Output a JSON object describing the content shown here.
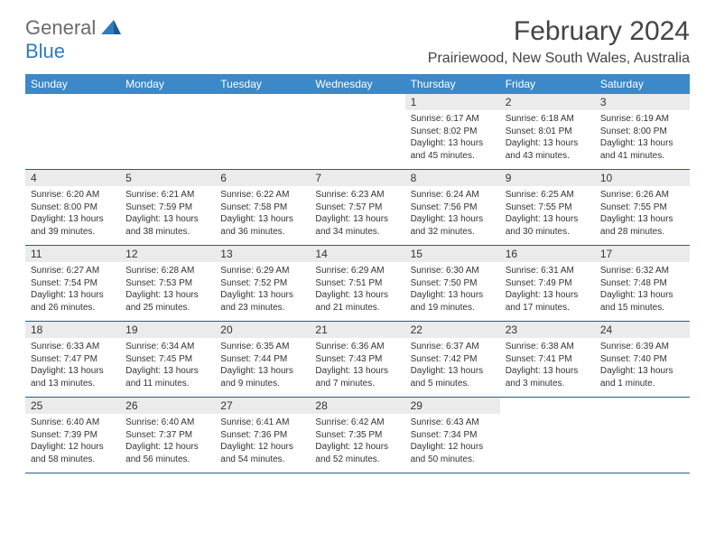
{
  "brand": {
    "part1": "General",
    "part2": "Blue"
  },
  "title": "February 2024",
  "location": "Prairiewood, New South Wales, Australia",
  "colors": {
    "header_bg": "#3b89c9",
    "header_text": "#ffffff",
    "daynum_bg": "#ebebeb",
    "border": "#2b5b85",
    "brand_grey": "#6b6b6b",
    "brand_blue": "#2f7bbf"
  },
  "weekdays": [
    "Sunday",
    "Monday",
    "Tuesday",
    "Wednesday",
    "Thursday",
    "Friday",
    "Saturday"
  ],
  "weeks": [
    [
      null,
      null,
      null,
      null,
      {
        "n": "1",
        "sr": "6:17 AM",
        "ss": "8:02 PM",
        "dl": "13 hours and 45 minutes."
      },
      {
        "n": "2",
        "sr": "6:18 AM",
        "ss": "8:01 PM",
        "dl": "13 hours and 43 minutes."
      },
      {
        "n": "3",
        "sr": "6:19 AM",
        "ss": "8:00 PM",
        "dl": "13 hours and 41 minutes."
      }
    ],
    [
      {
        "n": "4",
        "sr": "6:20 AM",
        "ss": "8:00 PM",
        "dl": "13 hours and 39 minutes."
      },
      {
        "n": "5",
        "sr": "6:21 AM",
        "ss": "7:59 PM",
        "dl": "13 hours and 38 minutes."
      },
      {
        "n": "6",
        "sr": "6:22 AM",
        "ss": "7:58 PM",
        "dl": "13 hours and 36 minutes."
      },
      {
        "n": "7",
        "sr": "6:23 AM",
        "ss": "7:57 PM",
        "dl": "13 hours and 34 minutes."
      },
      {
        "n": "8",
        "sr": "6:24 AM",
        "ss": "7:56 PM",
        "dl": "13 hours and 32 minutes."
      },
      {
        "n": "9",
        "sr": "6:25 AM",
        "ss": "7:55 PM",
        "dl": "13 hours and 30 minutes."
      },
      {
        "n": "10",
        "sr": "6:26 AM",
        "ss": "7:55 PM",
        "dl": "13 hours and 28 minutes."
      }
    ],
    [
      {
        "n": "11",
        "sr": "6:27 AM",
        "ss": "7:54 PM",
        "dl": "13 hours and 26 minutes."
      },
      {
        "n": "12",
        "sr": "6:28 AM",
        "ss": "7:53 PM",
        "dl": "13 hours and 25 minutes."
      },
      {
        "n": "13",
        "sr": "6:29 AM",
        "ss": "7:52 PM",
        "dl": "13 hours and 23 minutes."
      },
      {
        "n": "14",
        "sr": "6:29 AM",
        "ss": "7:51 PM",
        "dl": "13 hours and 21 minutes."
      },
      {
        "n": "15",
        "sr": "6:30 AM",
        "ss": "7:50 PM",
        "dl": "13 hours and 19 minutes."
      },
      {
        "n": "16",
        "sr": "6:31 AM",
        "ss": "7:49 PM",
        "dl": "13 hours and 17 minutes."
      },
      {
        "n": "17",
        "sr": "6:32 AM",
        "ss": "7:48 PM",
        "dl": "13 hours and 15 minutes."
      }
    ],
    [
      {
        "n": "18",
        "sr": "6:33 AM",
        "ss": "7:47 PM",
        "dl": "13 hours and 13 minutes."
      },
      {
        "n": "19",
        "sr": "6:34 AM",
        "ss": "7:45 PM",
        "dl": "13 hours and 11 minutes."
      },
      {
        "n": "20",
        "sr": "6:35 AM",
        "ss": "7:44 PM",
        "dl": "13 hours and 9 minutes."
      },
      {
        "n": "21",
        "sr": "6:36 AM",
        "ss": "7:43 PM",
        "dl": "13 hours and 7 minutes."
      },
      {
        "n": "22",
        "sr": "6:37 AM",
        "ss": "7:42 PM",
        "dl": "13 hours and 5 minutes."
      },
      {
        "n": "23",
        "sr": "6:38 AM",
        "ss": "7:41 PM",
        "dl": "13 hours and 3 minutes."
      },
      {
        "n": "24",
        "sr": "6:39 AM",
        "ss": "7:40 PM",
        "dl": "13 hours and 1 minute."
      }
    ],
    [
      {
        "n": "25",
        "sr": "6:40 AM",
        "ss": "7:39 PM",
        "dl": "12 hours and 58 minutes."
      },
      {
        "n": "26",
        "sr": "6:40 AM",
        "ss": "7:37 PM",
        "dl": "12 hours and 56 minutes."
      },
      {
        "n": "27",
        "sr": "6:41 AM",
        "ss": "7:36 PM",
        "dl": "12 hours and 54 minutes."
      },
      {
        "n": "28",
        "sr": "6:42 AM",
        "ss": "7:35 PM",
        "dl": "12 hours and 52 minutes."
      },
      {
        "n": "29",
        "sr": "6:43 AM",
        "ss": "7:34 PM",
        "dl": "12 hours and 50 minutes."
      },
      null,
      null
    ]
  ],
  "labels": {
    "sunrise": "Sunrise:",
    "sunset": "Sunset:",
    "daylight": "Daylight:"
  }
}
